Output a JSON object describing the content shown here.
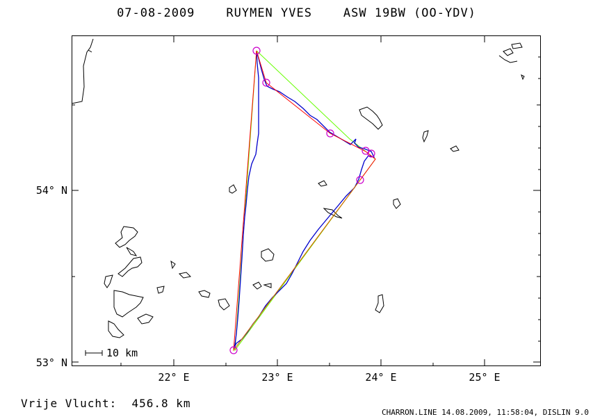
{
  "header": {
    "date": "07-08-2009",
    "pilot": "RUYMEN YVES",
    "glider": "ASW 19BW (OO-YDV)"
  },
  "map": {
    "lon_labels": [
      "22° E",
      "23° E",
      "24° E",
      "25° E"
    ],
    "lat_labels": [
      "54° N",
      "53° N"
    ],
    "scale_label": "10 km",
    "colors": {
      "coast": "#000000",
      "track": "#0000cc",
      "legs": "#ff0000",
      "fai": "#66ff00",
      "turnpoint": "#cc00cc"
    }
  },
  "footer": {
    "distance_label": "Vrije Vlucht:",
    "distance_value": "456.8 km",
    "credits": "CHARRON.LINE 14.08.2009, 11:58:04, DISLIN 9.0"
  }
}
